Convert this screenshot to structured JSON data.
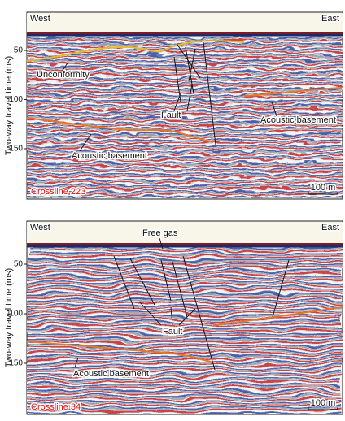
{
  "panels": [
    {
      "left_label": "West",
      "right_label": "East",
      "y_axis_label": "Two-way travel time (ms)",
      "yticks": [
        50,
        100,
        150
      ],
      "annotations": [
        "Unconformity",
        "Fault",
        "Acoustic basement",
        "Acoustic basement"
      ],
      "section_label": "Crossline 223",
      "scale_bar": "100 m"
    },
    {
      "left_label": "West",
      "right_label": "East",
      "y_axis_label": "Two-way travel time (ms)",
      "yticks": [
        50,
        100,
        150
      ],
      "annotations": [
        "Free gas",
        "Fault",
        "Acoustic basement"
      ],
      "section_label": "Crossline 34",
      "scale_bar": "100 m"
    }
  ]
}
